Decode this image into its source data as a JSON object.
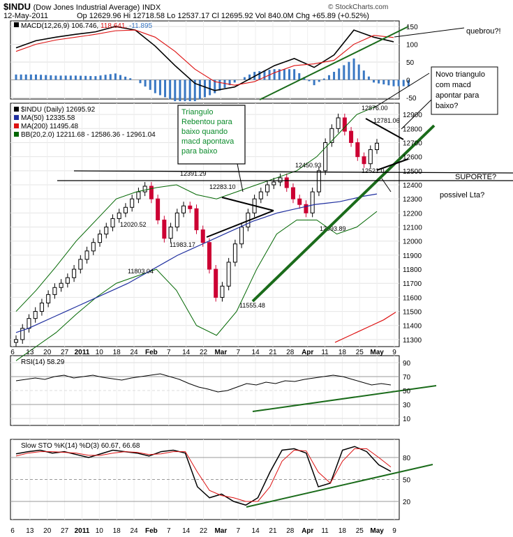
{
  "header": {
    "symbol": "$INDU",
    "name": "(Dow Jones Industrial Average)",
    "exchange": "INDX",
    "date": "12-May-2011",
    "quote": "Op 12629.96  Hi 12718.58  Lo 12537.17  Cl 12695.92  Vol 840.0M  Chg +65.89 (+0.52%)",
    "copyright": "© StockCharts.com"
  },
  "colors": {
    "price_up": "#000000",
    "price_down": "#cc0033",
    "ma50": "#1f2f9f",
    "ma200": "#dd1111",
    "bb": "#006600",
    "macd_hist": "#3a78c3",
    "annot_line": "#1a6b1a",
    "rsi_fill": "#5a7a5a"
  },
  "chart_data": [
    {
      "type": "line",
      "panel": "macd",
      "legend": {
        "label": "MACD(12,26,9)",
        "v1": "106.746,",
        "v2": "118.641,",
        "v3": "-11.895"
      },
      "y_ticks": [
        "150",
        "100",
        "50",
        "0",
        "-50"
      ],
      "x": [
        "Jan 6",
        "Jan 13",
        "Jan 20",
        "Jan 27",
        "Feb 3",
        "Feb 10",
        "Feb 18",
        "Feb 24",
        "Mar 1",
        "Mar 7",
        "Mar 14",
        "Mar 21",
        "Mar 28",
        "Apr 4",
        "Apr 11",
        "Apr 18",
        "Apr 25",
        "May 2",
        "May 9",
        "May 12"
      ],
      "series": [
        {
          "name": "MACD",
          "values": [
            90,
            110,
            120,
            128,
            135,
            150,
            140,
            95,
            40,
            -10,
            -30,
            -20,
            10,
            40,
            60,
            35,
            70,
            140,
            120,
            107
          ]
        },
        {
          "name": "Signal",
          "values": [
            80,
            100,
            112,
            120,
            128,
            138,
            140,
            120,
            80,
            30,
            -5,
            -15,
            -5,
            20,
            40,
            45,
            55,
            100,
            125,
            119
          ]
        },
        {
          "name": "Histogram",
          "values": [
            10,
            10,
            8,
            8,
            7,
            12,
            0,
            -25,
            -40,
            -40,
            -25,
            -5,
            15,
            20,
            20,
            -10,
            15,
            40,
            -5,
            -12
          ]
        }
      ]
    },
    {
      "type": "line",
      "panel": "price",
      "legend": [
        {
          "label": "$INDU (Daily) 12695.92"
        },
        {
          "label": "MA(50) 12335.58"
        },
        {
          "label": "MA(200) 11495.48"
        },
        {
          "label": "BB(20,2.0) 12211.68 - 12586.36 - 12961.04"
        }
      ],
      "y_ticks": [
        "12900",
        "12800",
        "12700",
        "12600",
        "12500",
        "12400",
        "12300",
        "12200",
        "12100",
        "12000",
        "11900",
        "11800",
        "11700",
        "11600",
        "11500",
        "11400",
        "11300"
      ],
      "ylim": [
        11250,
        12980
      ],
      "x_ticks": [
        "6",
        "13",
        "20",
        "27",
        "2011",
        "10",
        "18",
        "24",
        "Feb",
        "7",
        "14",
        "22",
        "Mar",
        "7",
        "14",
        "21",
        "28",
        "Apr",
        "11",
        "18",
        "25",
        "May",
        "9"
      ],
      "price_labels": [
        "12876.00",
        "12781.06",
        "12521.0",
        "12450.93",
        "12391.29",
        "12283.10",
        "12020.52",
        "11983.17",
        "11803.04",
        "12093.89",
        "11555.48"
      ],
      "close": [
        11300,
        11380,
        11450,
        11500,
        11560,
        11620,
        11670,
        11700,
        11740,
        11800,
        11870,
        11930,
        11990,
        12050,
        12100,
        12160,
        12200,
        12240,
        12300,
        12350,
        12390,
        12300,
        12150,
        12020,
        12100,
        12200,
        12250,
        12230,
        12080,
        11990,
        11800,
        11600,
        11680,
        11850,
        11980,
        12100,
        12200,
        12300,
        12350,
        12400,
        12420,
        12450,
        12380,
        12300,
        12260,
        12200,
        12350,
        12500,
        12700,
        12800,
        12876,
        12781,
        12700,
        12600,
        12550,
        12650,
        12696
      ],
      "ma50": [
        11350,
        11380,
        11420,
        11460,
        11500,
        11540,
        11580,
        11620,
        11660,
        11700,
        11750,
        11800,
        11850,
        11900,
        11940,
        11980,
        12020,
        12060,
        12100,
        12140,
        12170,
        12200,
        12220,
        12240,
        12260,
        12270,
        12280,
        12300,
        12320,
        12335
      ],
      "ma200": [
        11280,
        11320,
        11360,
        11400,
        11440,
        11495
      ],
      "bb_upper": [
        11500,
        11650,
        11820,
        12000,
        12150,
        12300,
        12350,
        12380,
        12400,
        12330,
        12300,
        12350,
        12400,
        12450,
        12500,
        12600,
        12750,
        12900,
        12961
      ],
      "bb_lower": [
        11150,
        11250,
        11350,
        11480,
        11600,
        11700,
        11750,
        11800,
        11650,
        11400,
        11330,
        11500,
        11800,
        12050,
        12150,
        12150,
        12050,
        12100,
        12211
      ]
    },
    {
      "type": "line",
      "panel": "rsi",
      "legend": {
        "label": "RSI(14) 58.29"
      },
      "y_ticks": [
        "90",
        "70",
        "50",
        "30",
        "10"
      ],
      "values": [
        64,
        66,
        68,
        66,
        70,
        72,
        68,
        70,
        72,
        69,
        67,
        65,
        68,
        70,
        72,
        74,
        70,
        66,
        60,
        55,
        52,
        48,
        50,
        55,
        60,
        58,
        62,
        60,
        64,
        63,
        66,
        68,
        70,
        72,
        70,
        66,
        62,
        58,
        60,
        58
      ]
    },
    {
      "type": "line",
      "panel": "stochastic",
      "legend": {
        "label": "Slow STO %K(14) %D(3) 60.67, 66.68"
      },
      "y_ticks": [
        "80",
        "50",
        "20"
      ],
      "series": [
        {
          "name": "%K",
          "values": [
            85,
            88,
            90,
            86,
            88,
            84,
            80,
            85,
            90,
            88,
            86,
            82,
            88,
            90,
            86,
            40,
            25,
            30,
            20,
            15,
            25,
            60,
            90,
            92,
            86,
            40,
            45,
            90,
            95,
            88,
            70,
            61
          ]
        },
        {
          "name": "%D",
          "values": [
            82,
            86,
            88,
            88,
            87,
            86,
            83,
            83,
            86,
            88,
            87,
            84,
            85,
            88,
            88,
            60,
            35,
            28,
            25,
            20,
            20,
            40,
            75,
            90,
            89,
            60,
            45,
            75,
            92,
            92,
            80,
            67
          ]
        }
      ]
    }
  ],
  "annotations": {
    "triangle_box": "Triangulo Rebentou para baixo quando macd apontava para baixo",
    "quebrou": "quebrou?!",
    "novo_triangulo": "Novo triangulo com macd apontar para baixo?",
    "suporte": "SUPORTE?",
    "lta": "possivel Lta?"
  }
}
